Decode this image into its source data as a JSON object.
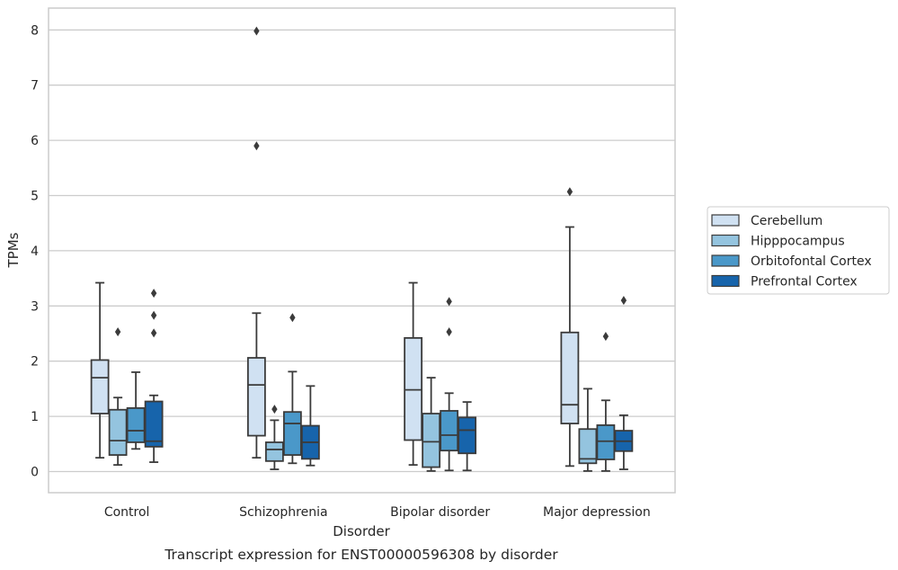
{
  "chart_data": {
    "type": "box",
    "xlabel": "Disorder",
    "ylabel": "TPMs",
    "caption": "Transcript expression for ENST00000596308 by disorder",
    "ylim": [
      -0.4,
      8.4
    ],
    "yticks": [
      0,
      1,
      2,
      3,
      4,
      5,
      6,
      7,
      8
    ],
    "grid": true,
    "legend_position": "right",
    "categories": [
      "Control",
      "Schizophrenia",
      "Bipolar disorder",
      "Major depression"
    ],
    "series": [
      {
        "name": "Cerebellum",
        "color": "#d0e1f2",
        "boxes": [
          {
            "whisker_low": 0.25,
            "q1": 1.05,
            "median": 1.7,
            "q3": 2.02,
            "whisker_high": 3.42,
            "outliers": []
          },
          {
            "whisker_low": 0.25,
            "q1": 0.65,
            "median": 1.57,
            "q3": 2.06,
            "whisker_high": 2.87,
            "outliers": [
              5.9,
              7.98
            ]
          },
          {
            "whisker_low": 0.12,
            "q1": 0.57,
            "median": 1.48,
            "q3": 2.42,
            "whisker_high": 3.42,
            "outliers": []
          },
          {
            "whisker_low": 0.1,
            "q1": 0.87,
            "median": 1.21,
            "q3": 2.52,
            "whisker_high": 4.43,
            "outliers": [
              5.07
            ]
          }
        ]
      },
      {
        "name": "Hipppocampus",
        "color": "#94c4df",
        "boxes": [
          {
            "whisker_low": 0.12,
            "q1": 0.3,
            "median": 0.56,
            "q3": 1.12,
            "whisker_high": 1.34,
            "outliers": [
              2.53
            ]
          },
          {
            "whisker_low": 0.04,
            "q1": 0.19,
            "median": 0.4,
            "q3": 0.53,
            "whisker_high": 0.93,
            "outliers": [
              1.13
            ]
          },
          {
            "whisker_low": 0.01,
            "q1": 0.08,
            "median": 0.54,
            "q3": 1.05,
            "whisker_high": 1.7,
            "outliers": []
          },
          {
            "whisker_low": 0.01,
            "q1": 0.15,
            "median": 0.23,
            "q3": 0.77,
            "whisker_high": 1.5,
            "outliers": []
          }
        ]
      },
      {
        "name": "Orbitofontal Cortex",
        "color": "#4a98c9",
        "boxes": [
          {
            "whisker_low": 0.41,
            "q1": 0.53,
            "median": 0.74,
            "q3": 1.15,
            "whisker_high": 1.8,
            "outliers": []
          },
          {
            "whisker_low": 0.15,
            "q1": 0.3,
            "median": 0.87,
            "q3": 1.08,
            "whisker_high": 1.81,
            "outliers": [
              2.79
            ]
          },
          {
            "whisker_low": 0.02,
            "q1": 0.38,
            "median": 0.66,
            "q3": 1.1,
            "whisker_high": 1.42,
            "outliers": [
              2.53,
              3.08
            ]
          },
          {
            "whisker_low": 0.01,
            "q1": 0.22,
            "median": 0.55,
            "q3": 0.84,
            "whisker_high": 1.29,
            "outliers": [
              2.45
            ]
          }
        ]
      },
      {
        "name": "Prefrontal Cortex",
        "color": "#1764ab",
        "boxes": [
          {
            "whisker_low": 0.17,
            "q1": 0.45,
            "median": 0.55,
            "q3": 1.27,
            "whisker_high": 1.38,
            "outliers": [
              2.51,
              2.83,
              3.23
            ]
          },
          {
            "whisker_low": 0.11,
            "q1": 0.23,
            "median": 0.53,
            "q3": 0.83,
            "whisker_high": 1.55,
            "outliers": []
          },
          {
            "whisker_low": 0.02,
            "q1": 0.33,
            "median": 0.75,
            "q3": 0.98,
            "whisker_high": 1.26,
            "outliers": []
          },
          {
            "whisker_low": 0.04,
            "q1": 0.37,
            "median": 0.55,
            "q3": 0.74,
            "whisker_high": 1.02,
            "outliers": [
              3.1
            ]
          }
        ]
      }
    ]
  }
}
